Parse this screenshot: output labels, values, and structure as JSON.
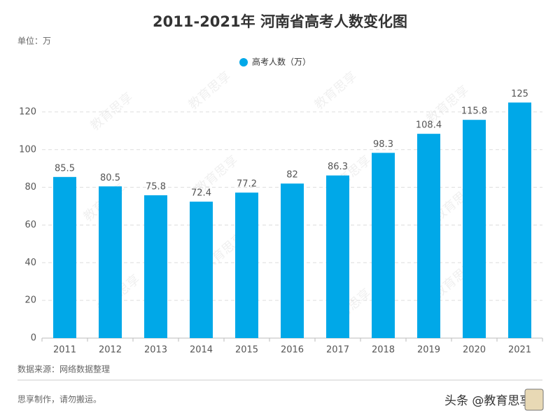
{
  "chart_data": {
    "type": "bar",
    "title": "2011-2021年 河南省高考人数变化图",
    "unit": "单位：万",
    "categories": [
      "2011",
      "2012",
      "2013",
      "2014",
      "2015",
      "2016",
      "2017",
      "2018",
      "2019",
      "2020",
      "2021"
    ],
    "series": [
      {
        "name": "高考人数（万）",
        "color": "#00a8e8",
        "values": [
          85.5,
          80.5,
          75.8,
          72.4,
          77.2,
          82,
          86.3,
          98.3,
          108.4,
          115.8,
          125
        ]
      }
    ],
    "ylim": [
      0,
      130
    ],
    "yticks": [
      0,
      20,
      40,
      60,
      80,
      100,
      120
    ],
    "grid": true,
    "legend": "top",
    "source": "数据来源：网络数据整理",
    "footer": "思享制作，请勿搬运。",
    "watermark": "教育思享",
    "signature": "头条 @教育思享"
  }
}
